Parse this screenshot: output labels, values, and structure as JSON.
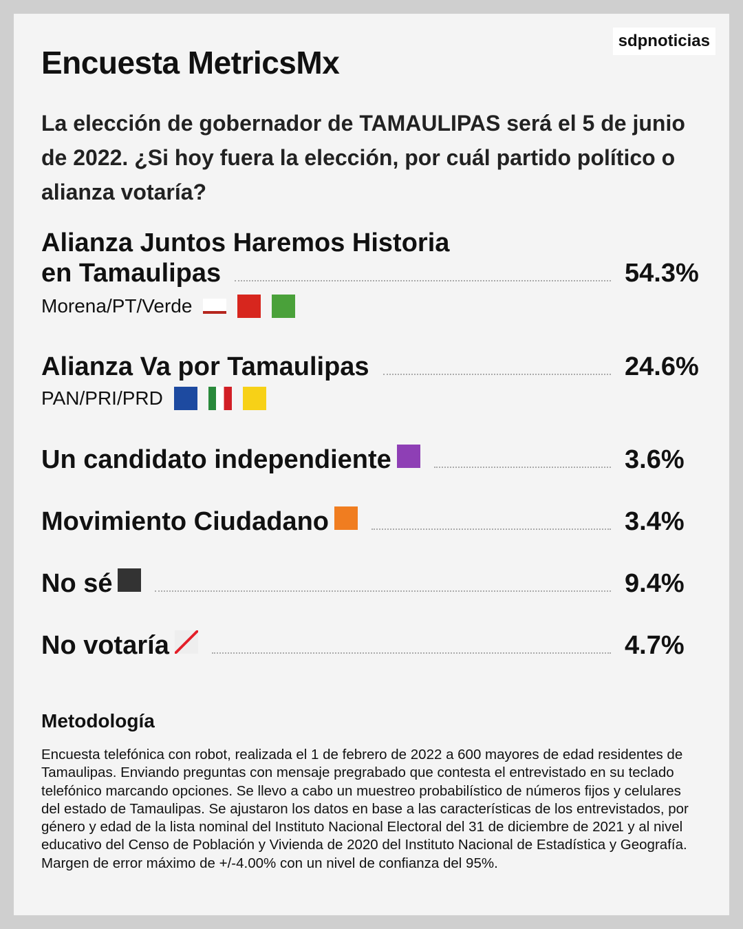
{
  "brand": "sdpnoticias",
  "header": {
    "title": "Encuesta MetricsMx",
    "question": "La elección de gobernador de TAMAULIPAS será el 5 de junio de 2022. ¿Si hoy fuera la elección, por cuál partido político o alianza votaría?"
  },
  "results": [
    {
      "label_lines": [
        "Alianza Juntos Haremos Historia",
        "en Tamaulipas"
      ],
      "parties": "Morena/PT/Verde",
      "value": "54.3%"
    },
    {
      "label_lines": [
        "Alianza Va por Tamaulipas"
      ],
      "parties": "PAN/PRI/PRD",
      "value": "24.6%"
    },
    {
      "label_lines": [
        "Un candidato independiente"
      ],
      "value": "3.6%"
    },
    {
      "label_lines": [
        "Movimiento Ciudadano"
      ],
      "value": "3.4%"
    },
    {
      "label_lines": [
        "No sé"
      ],
      "value": "9.4%"
    },
    {
      "label_lines": [
        "No votaría"
      ],
      "value": "4.7%"
    }
  ],
  "methodology": {
    "title": "Metodología",
    "text": "Encuesta telefónica con robot, realizada el 1 de febrero de 2022 a 600 mayores de edad residentes de Tamaulipas. Enviando preguntas con mensaje pregrabado que contesta el entrevistado en su teclado telefónico marcando opciones. Se llevo a cabo un muestreo probabilístico de números fijos y celulares del estado de Tamaulipas. Se ajustaron los datos en base a las características de los entrevistados, por género y edad de la lista nominal del Instituto Nacional Electoral del 31 de diciembre de 2021 y al nivel educativo del Censo de Población y Vivienda de 2020 del Instituto Nacional de Estadística y Geografía. Margen de error máximo de +/-4.00% con un nivel de confianza del 95%."
  }
}
